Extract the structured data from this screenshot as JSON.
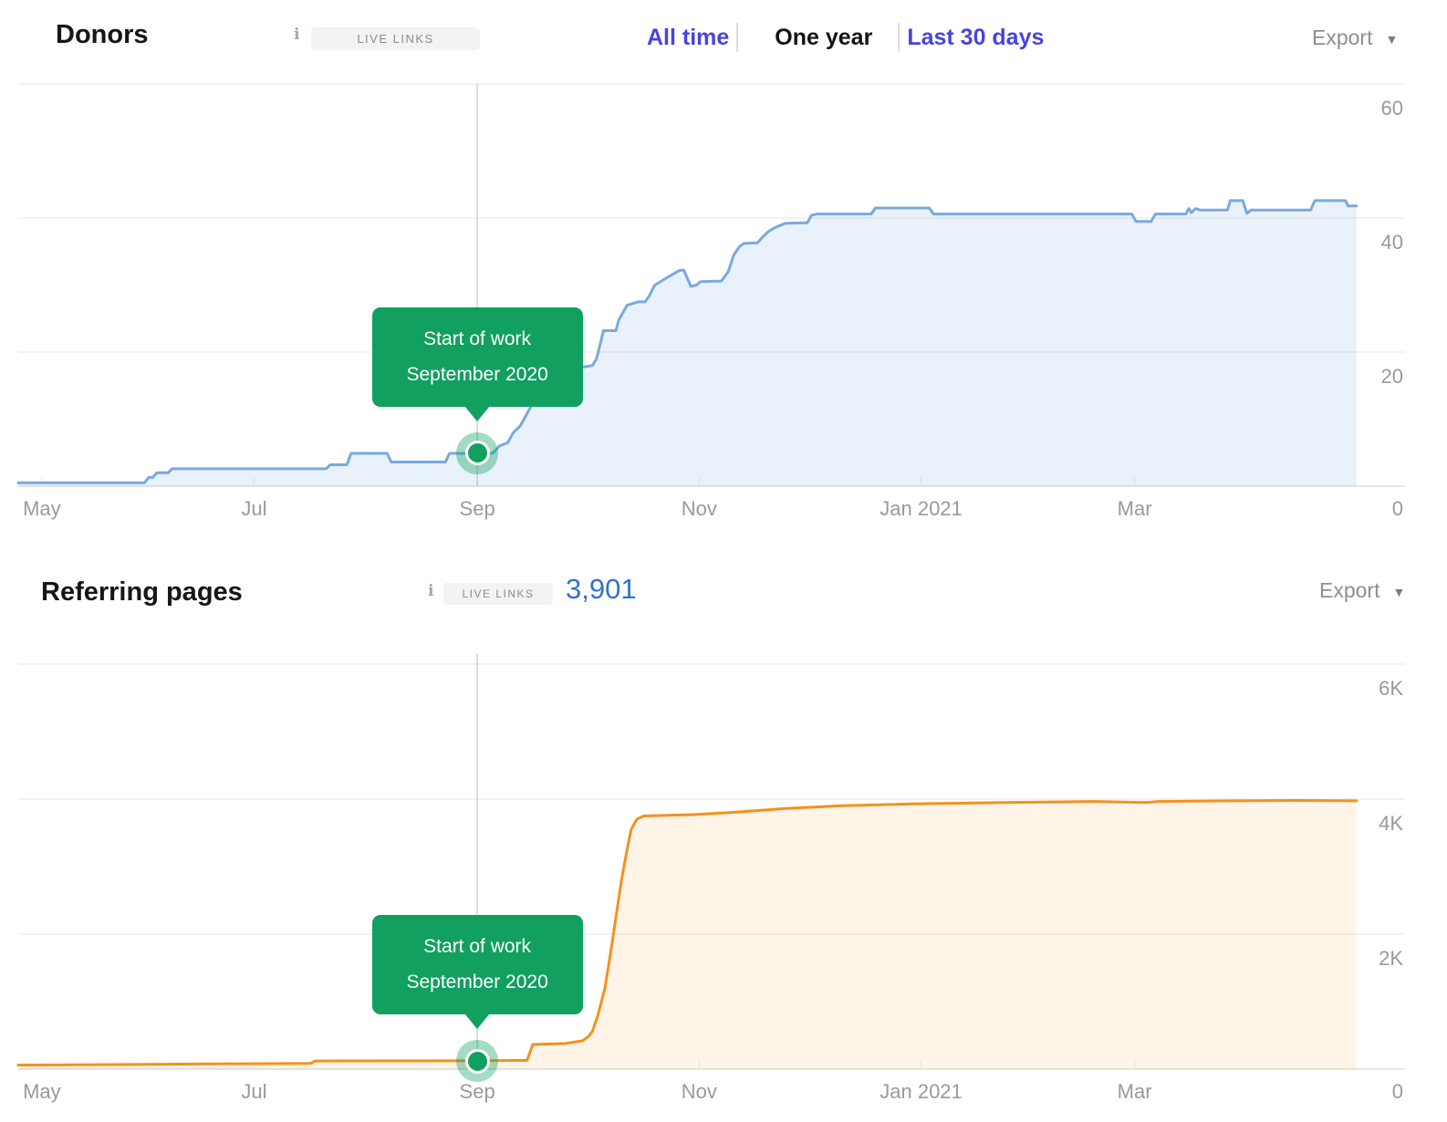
{
  "ui": {
    "charts": [
      {
        "header": {
          "title": "Donors",
          "info_icon": "i",
          "badge": "LIVE LINKS",
          "tabs": [
            "All time",
            "One year",
            "Last 30 days"
          ],
          "active_tab": "One year",
          "export_label": "Export",
          "export_caret": "▼"
        }
      },
      {
        "header": {
          "title": "Referring pages",
          "info_icon": "i",
          "badge": "LIVE LINKS",
          "count": "3,901",
          "export_label": "Export",
          "export_caret": "▼"
        }
      }
    ],
    "accent_colors": {
      "tab_link_blue": "#4745dc",
      "count_blue": "#3273cc",
      "annotation_green": "#11a060"
    }
  },
  "chart_data": [
    {
      "type": "area",
      "title": "Donors",
      "x_range": [
        "May 2020",
        "Apr 2021"
      ],
      "x_tick_labels": [
        "May",
        "Jul",
        "Sep",
        "Nov",
        "Jan 2021",
        "Mar"
      ],
      "ylim": [
        0,
        60
      ],
      "y_ticks": [
        {
          "value": 0,
          "label": "0"
        },
        {
          "value": 20,
          "label": "20"
        },
        {
          "value": 40,
          "label": "40"
        },
        {
          "value": 60,
          "label": "60"
        }
      ],
      "legend": "none",
      "grid": "horizontal",
      "y_axis_position": "right",
      "series": [
        {
          "name": "Donors (live links)",
          "color": "#79a9df",
          "fill": "rgba(121,169,223,0.16)",
          "points": [
            [
              0.0,
              0.5
            ],
            [
              0.091,
              0.5
            ],
            [
              0.094,
              1.3
            ],
            [
              0.097,
              1.3
            ],
            [
              0.1,
              2.0
            ],
            [
              0.108,
              2.0
            ],
            [
              0.111,
              2.6
            ],
            [
              0.222,
              2.6
            ],
            [
              0.225,
              3.2
            ],
            [
              0.237,
              3.2
            ],
            [
              0.24,
              4.9
            ],
            [
              0.266,
              4.9
            ],
            [
              0.269,
              3.6
            ],
            [
              0.308,
              3.6
            ],
            [
              0.311,
              4.9
            ],
            [
              0.342,
              4.9
            ],
            [
              0.347,
              6.0
            ],
            [
              0.353,
              6.5
            ],
            [
              0.357,
              8.0
            ],
            [
              0.362,
              9.0
            ],
            [
              0.366,
              10.5
            ],
            [
              0.37,
              12.0
            ],
            [
              0.375,
              14.0
            ],
            [
              0.38,
              15.5
            ],
            [
              0.385,
              17.0
            ],
            [
              0.414,
              18.0
            ],
            [
              0.417,
              19.0
            ],
            [
              0.42,
              21.5
            ],
            [
              0.422,
              23.2
            ],
            [
              0.431,
              23.2
            ],
            [
              0.433,
              24.8
            ],
            [
              0.439,
              27.0
            ],
            [
              0.447,
              27.5
            ],
            [
              0.452,
              27.5
            ],
            [
              0.455,
              28.4
            ],
            [
              0.459,
              30.0
            ],
            [
              0.467,
              31.0
            ],
            [
              0.477,
              32.2
            ],
            [
              0.48,
              32.2
            ],
            [
              0.485,
              29.8
            ],
            [
              0.489,
              30.0
            ],
            [
              0.492,
              30.5
            ],
            [
              0.507,
              30.6
            ],
            [
              0.512,
              32.0
            ],
            [
              0.516,
              34.5
            ],
            [
              0.52,
              35.7
            ],
            [
              0.523,
              36.2
            ],
            [
              0.533,
              36.3
            ],
            [
              0.536,
              37.0
            ],
            [
              0.541,
              38.0
            ],
            [
              0.546,
              38.6
            ],
            [
              0.553,
              39.2
            ],
            [
              0.569,
              39.3
            ],
            [
              0.572,
              40.4
            ],
            [
              0.576,
              40.6
            ],
            [
              0.615,
              40.6
            ],
            [
              0.618,
              41.5
            ],
            [
              0.657,
              41.5
            ],
            [
              0.66,
              40.6
            ],
            [
              0.803,
              40.6
            ],
            [
              0.806,
              39.5
            ],
            [
              0.817,
              39.5
            ],
            [
              0.82,
              40.6
            ],
            [
              0.842,
              40.6
            ],
            [
              0.844,
              41.4
            ],
            [
              0.846,
              40.8
            ],
            [
              0.849,
              41.4
            ],
            [
              0.852,
              41.2
            ],
            [
              0.872,
              41.2
            ],
            [
              0.874,
              42.6
            ],
            [
              0.883,
              42.6
            ],
            [
              0.886,
              40.7
            ],
            [
              0.889,
              41.2
            ],
            [
              0.932,
              41.2
            ],
            [
              0.935,
              42.6
            ],
            [
              0.957,
              42.6
            ],
            [
              0.959,
              41.8
            ],
            [
              0.965,
              41.8
            ]
          ]
        }
      ],
      "annotation": {
        "lines": [
          "Start of work",
          "September 2020"
        ],
        "x": 0.331,
        "x_label": "Sep 2020",
        "y": 4.9,
        "color": "#11a060"
      }
    },
    {
      "type": "area",
      "title": "Referring pages",
      "live_links_total": "3,901",
      "x_range": [
        "May 2020",
        "Apr 2021"
      ],
      "x_tick_labels": [
        "May",
        "Jul",
        "Sep",
        "Nov",
        "Jan 2021",
        "Mar"
      ],
      "ylim": [
        0,
        6000
      ],
      "y_ticks": [
        {
          "value": 0,
          "label": "0"
        },
        {
          "value": 2000,
          "label": "2K"
        },
        {
          "value": 4000,
          "label": "4K"
        },
        {
          "value": 6000,
          "label": "6K"
        }
      ],
      "legend": "none",
      "grid": "horizontal",
      "y_axis_position": "right",
      "series": [
        {
          "name": "Referring pages (live links)",
          "color": "#f5911e",
          "fill": "rgba(245,145,30,0.10)",
          "points": [
            [
              0.0,
              60
            ],
            [
              0.118,
              75
            ],
            [
              0.211,
              85
            ],
            [
              0.214,
              120
            ],
            [
              0.331,
              125
            ],
            [
              0.367,
              130
            ],
            [
              0.371,
              365
            ],
            [
              0.395,
              380
            ],
            [
              0.407,
              420
            ],
            [
              0.411,
              480
            ],
            [
              0.414,
              560
            ],
            [
              0.418,
              800
            ],
            [
              0.423,
              1200
            ],
            [
              0.427,
              1700
            ],
            [
              0.431,
              2250
            ],
            [
              0.435,
              2800
            ],
            [
              0.439,
              3250
            ],
            [
              0.442,
              3550
            ],
            [
              0.446,
              3700
            ],
            [
              0.451,
              3750
            ],
            [
              0.487,
              3770
            ],
            [
              0.513,
              3800
            ],
            [
              0.553,
              3860
            ],
            [
              0.592,
              3900
            ],
            [
              0.645,
              3930
            ],
            [
              0.711,
              3950
            ],
            [
              0.776,
              3965
            ],
            [
              0.813,
              3950
            ],
            [
              0.822,
              3965
            ],
            [
              0.875,
              3975
            ],
            [
              0.921,
              3980
            ],
            [
              0.965,
              3975
            ]
          ]
        }
      ],
      "annotation": {
        "lines": [
          "Start of work",
          "September 2020"
        ],
        "x": 0.331,
        "x_label": "Sep 2020",
        "y": 120,
        "color": "#11a060"
      }
    }
  ]
}
